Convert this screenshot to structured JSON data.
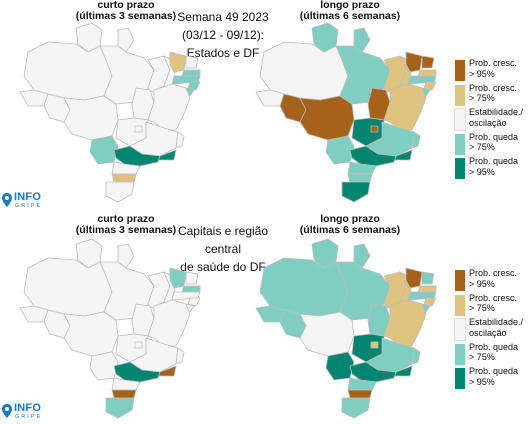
{
  "top": {
    "center_title": {
      "line1": "Semana 49 2023",
      "line2": "(03/12 - 09/12):",
      "line3": "Estados e DF"
    },
    "left_map_title": {
      "line1": "curto prazo",
      "line2": "(últimas 3 semanas)"
    },
    "right_map_title": {
      "line1": "longo prazo",
      "line2": "(últimas 6 semanas)"
    }
  },
  "bottom": {
    "center_title": {
      "line1": "Capitais e região central",
      "line2": "de saúde do DF"
    },
    "left_map_title": {
      "line1": "curto prazo",
      "line2": "(últimas 3 semanas)"
    },
    "right_map_title": {
      "line1": "longo prazo",
      "line2": "(últimas 6 semanas)"
    }
  },
  "legend": [
    {
      "label": "Prob. cresc.\n> 95%",
      "color": "#a6611a"
    },
    {
      "label": "Prob. cresc.\n> 75%",
      "color": "#dfc27d"
    },
    {
      "label": "Estabilidade./\noscilação",
      "color": "#f5f5f5"
    },
    {
      "label": "Prob. queda\n> 75%",
      "color": "#80cdc1"
    },
    {
      "label": "Prob. queda\n> 95%",
      "color": "#018571"
    }
  ],
  "logo": {
    "text": "INFO",
    "sub": "GRIPE",
    "icon": "map-pin-icon"
  },
  "colors": {
    "cresc95": "#a6611a",
    "cresc75": "#dfc27d",
    "estavel": "#f5f5f5",
    "queda75": "#80cdc1",
    "queda95": "#018571"
  },
  "maps": {
    "top_short": {
      "AM": "estavel",
      "PA": "estavel",
      "MT": "estavel",
      "AC": "estavel",
      "RO": "estavel",
      "RR": "estavel",
      "AP": "estavel",
      "TO": "estavel",
      "MA": "estavel",
      "PI": "estavel",
      "CE": "cresc75",
      "RN": "estavel",
      "PB": "queda75",
      "PE": "queda75",
      "AL": "queda75",
      "SE": "queda75",
      "BA": "estavel",
      "GO": "estavel",
      "DF": "estavel",
      "MS": "queda75",
      "MG": "estavel",
      "ES": "estavel",
      "RJ": "queda95",
      "SP": "queda95",
      "PR": "estavel",
      "SC": "cresc75",
      "RS": "estavel"
    },
    "top_long": {
      "AM": "estavel",
      "PA": "queda75",
      "MT": "cresc95",
      "AC": "estavel",
      "RO": "cresc95",
      "RR": "queda75",
      "AP": "queda75",
      "TO": "cresc95",
      "MA": "cresc75",
      "PI": "cresc75",
      "CE": "cresc95",
      "RN": "cresc95",
      "PB": "cresc75",
      "PE": "queda75",
      "AL": "cresc75",
      "SE": "queda75",
      "BA": "cresc75",
      "GO": "queda95",
      "DF": "cresc95",
      "MS": "queda75",
      "MG": "queda75",
      "ES": "queda75",
      "RJ": "queda95",
      "SP": "queda95",
      "PR": "queda75",
      "SC": "queda75",
      "RS": "queda95"
    },
    "bottom_short": {
      "AM": "estavel",
      "PA": "estavel",
      "MT": "estavel",
      "AC": "estavel",
      "RO": "estavel",
      "RR": "estavel",
      "AP": "estavel",
      "TO": "estavel",
      "MA": "estavel",
      "PI": "estavel",
      "CE": "queda75",
      "RN": "estavel",
      "PB": "queda75",
      "PE": "estavel",
      "AL": "estavel",
      "SE": "estavel",
      "BA": "estavel",
      "GO": "estavel",
      "DF": "estavel",
      "MS": "estavel",
      "MG": "estavel",
      "ES": "estavel",
      "RJ": "cresc95",
      "SP": "queda95",
      "PR": "estavel",
      "SC": "cresc95",
      "RS": "queda75"
    },
    "bottom_long": {
      "AM": "queda75",
      "PA": "queda75",
      "MT": "estavel",
      "AC": "queda75",
      "RO": "queda75",
      "RR": "queda75",
      "AP": "queda75",
      "TO": "queda75",
      "MA": "cresc75",
      "PI": "cresc75",
      "CE": "cresc95",
      "RN": "queda75",
      "PB": "cresc75",
      "PE": "queda75",
      "AL": "cresc75",
      "SE": "queda75",
      "BA": "cresc75",
      "GO": "queda95",
      "DF": "cresc75",
      "MS": "queda95",
      "MG": "queda75",
      "ES": "queda75",
      "RJ": "queda95",
      "SP": "queda95",
      "PR": "queda75",
      "SC": "cresc95",
      "RS": "queda75"
    }
  }
}
